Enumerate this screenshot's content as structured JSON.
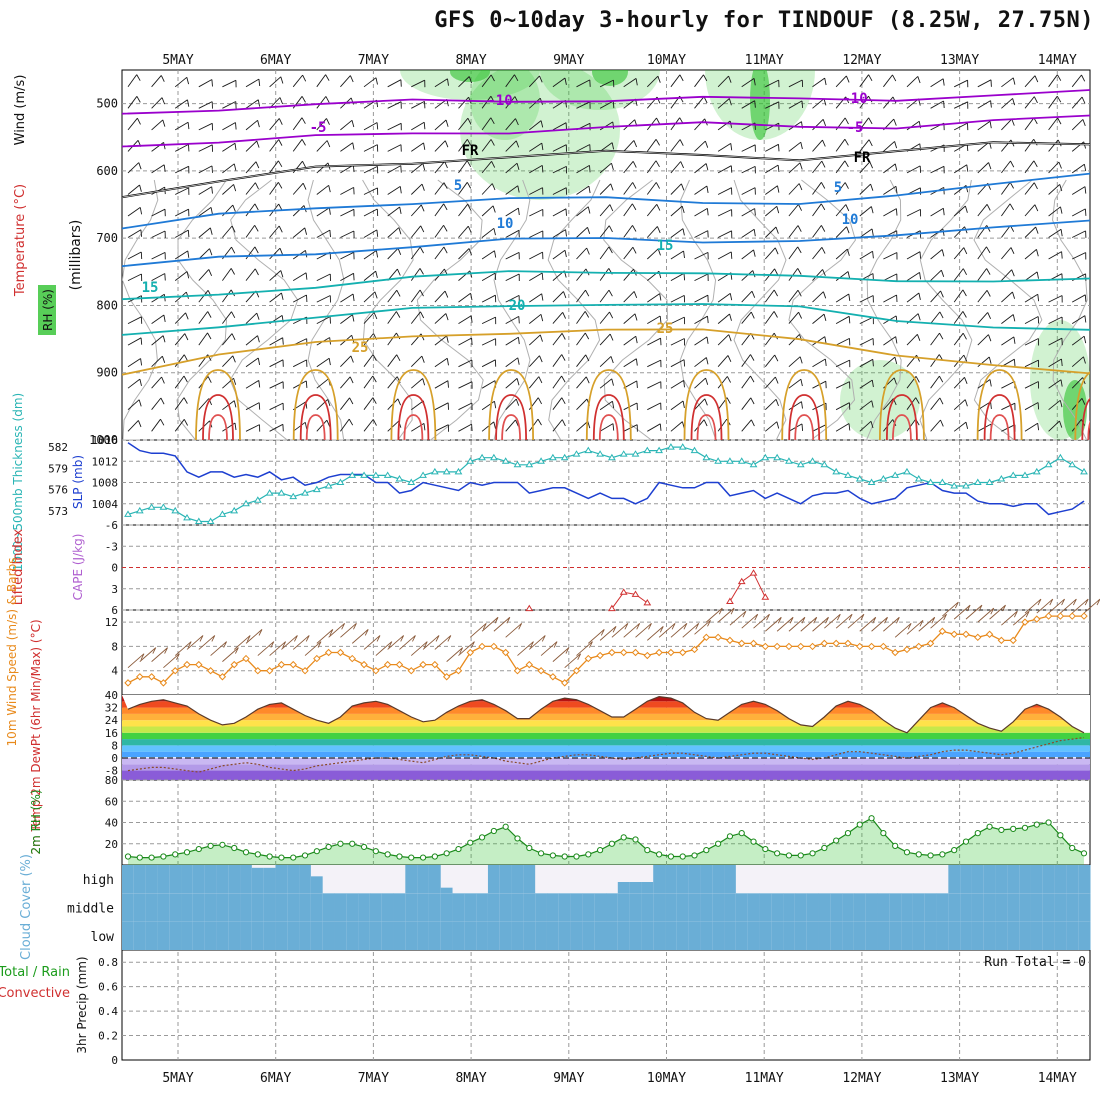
{
  "title": "GFS 0~10day 3-hourly for TINDOUF (8.25W, 27.75N)",
  "colors": {
    "grid": "#9a9a9a",
    "wind_barb": "#1a1a1a",
    "temp_cold": "#9a00cc",
    "temp_freeze": "#000000",
    "temp_cool": "#1f7ad6",
    "temp_mild": "#14b0b0",
    "temp_warm": "#d6a02a",
    "temp_hot": "#d03030",
    "rh_shade": "#2ec22e",
    "slp": "#1d3fd0",
    "thickness": "#2ab5b5",
    "lifted_index": "#d03030",
    "cape": "#b060d0",
    "wind10m": "#e88a1c",
    "barb10m": "#8a5a3a",
    "rh2m": "#1b8a1b",
    "cloud": "#6aaed6",
    "cloud_clear": "#f4f2f8",
    "cloud_mid_light": "#e6e6e6",
    "precip": "#1c9c1c"
  },
  "chart_data": [
    {
      "id": "upper-air",
      "type": "contour",
      "x_labels": [
        "5MAY",
        "6MAY",
        "7MAY",
        "8MAY",
        "9MAY",
        "10MAY",
        "11MAY",
        "12MAY",
        "13MAY",
        "14MAY"
      ],
      "y_ticks": [
        500,
        600,
        700,
        800,
        900,
        1000
      ],
      "ylim": [
        450,
        1000
      ],
      "ylabel_parts": [
        "Wind (m/s)",
        "Temperature (°C)",
        "RH (%)"
      ],
      "ylabel_units": "(millibars)",
      "contours": [
        {
          "level": "-10",
          "color_key": "temp_cold",
          "pressures": [
            515,
            506,
            502,
            498,
            495,
            493,
            493,
            495,
            492,
            486,
            484
          ]
        },
        {
          "level": "-5",
          "color_key": "temp_cold",
          "pressures": [
            560,
            556,
            551,
            545,
            540,
            535,
            532,
            533,
            533,
            527,
            521
          ]
        },
        {
          "level": "FR",
          "color_key": "temp_freeze",
          "pressures": [
            635,
            618,
            597,
            586,
            577,
            574,
            578,
            580,
            570,
            562,
            560
          ]
        },
        {
          "level": "5",
          "color_key": "temp_cool",
          "pressures": [
            685,
            668,
            655,
            645,
            642,
            643,
            645,
            646,
            640,
            622,
            600
          ]
        },
        {
          "level": "10",
          "color_key": "temp_cool",
          "pressures": [
            745,
            730,
            720,
            712,
            705,
            700,
            702,
            705,
            700,
            682,
            670
          ]
        },
        {
          "level": "15",
          "color_key": "temp_mild",
          "pressures": [
            795,
            782,
            770,
            760,
            752,
            748,
            750,
            760,
            765,
            760,
            760
          ]
        },
        {
          "level": "20",
          "color_key": "temp_mild",
          "pressures": [
            845,
            828,
            818,
            808,
            800,
            795,
            800,
            805,
            820,
            830,
            840
          ]
        },
        {
          "level": "25",
          "color_key": "temp_warm",
          "pressures": [
            900,
            870,
            858,
            848,
            838,
            835,
            840,
            850,
            870,
            890,
            905
          ]
        }
      ],
      "contour_labels": [
        "-10",
        "-10",
        "-5",
        "-5",
        "FR",
        "FR",
        "5",
        "5",
        "10",
        "10",
        "15",
        "15",
        "20",
        "25",
        "25"
      ]
    },
    {
      "id": "thickness-slp",
      "type": "line",
      "left_ticks": [
        "582",
        "579",
        "576",
        "573"
      ],
      "right_ticks": [
        "1016",
        "1012",
        "1008",
        "1004"
      ],
      "ylabel_left": "1000~500mb Thickness (dm)",
      "ylabel_right": "SLP (mb)",
      "series": [
        {
          "name": "SLP (mb)",
          "ylim": [
            1000,
            1016
          ],
          "values": [
            1015.5,
            1014,
            1013.5,
            1013.5,
            1013,
            1010,
            1009,
            1010,
            1010,
            1009,
            1009.5,
            1009,
            1010,
            1008.5,
            1009,
            1007.5,
            1008,
            1009,
            1009.5,
            1009.5,
            1009.5,
            1008,
            1008,
            1006,
            1006.5,
            1008,
            1007.5,
            1007,
            1006.5,
            1008,
            1007.5,
            1008,
            1008,
            1008,
            1006,
            1006.5,
            1007,
            1007,
            1006,
            1005,
            1006,
            1005,
            1005,
            1004,
            1005,
            1008,
            1007.5,
            1007,
            1007,
            1008,
            1008,
            1005.5,
            1006,
            1006.5,
            1005,
            1006,
            1005,
            1004,
            1005.5,
            1006,
            1006,
            1006.5,
            1005,
            1004,
            1004.5,
            1005,
            1007,
            1007.5,
            1008,
            1006.5,
            1006,
            1006,
            1004.5,
            1004,
            1004,
            1003.5,
            1004,
            1004,
            1002,
            1002.5,
            1003,
            1004.5
          ]
        },
        {
          "name": "1000~500mb Thickness (dm)",
          "ylim": [
            571,
            583
          ],
          "values": [
            572.5,
            573,
            573.5,
            573.5,
            573,
            572,
            571.5,
            571.5,
            572.5,
            573,
            574,
            574.5,
            575.5,
            575.5,
            575,
            575.5,
            576,
            576.5,
            577,
            578,
            578,
            578,
            578,
            577.5,
            577,
            578,
            578.5,
            578.5,
            578.5,
            580,
            580.5,
            580.5,
            580,
            579.5,
            579.5,
            580,
            580.5,
            580.5,
            581,
            581.5,
            581,
            580.5,
            581,
            581,
            581.5,
            581.5,
            582,
            582,
            581.5,
            580.5,
            580,
            580,
            580,
            579.5,
            580.5,
            580.5,
            580,
            579.5,
            580,
            579.5,
            578.5,
            578,
            577.5,
            577,
            577.5,
            578,
            578.5,
            577.5,
            577,
            577,
            576.5,
            576.5,
            577,
            577,
            577.5,
            578,
            578,
            578.5,
            579.5,
            580.5,
            579.5,
            578.5
          ]
        }
      ]
    },
    {
      "id": "stability",
      "type": "line",
      "y_ticks": [
        "-6",
        "-3",
        "0",
        "3",
        "6"
      ],
      "ylim": [
        6,
        -6
      ],
      "ylabel_left": "Lifted Index",
      "ylabel_right": "CAPE (J/kg)",
      "series": [
        {
          "name": "Lifted Index",
          "values": [
            null,
            null,
            null,
            null,
            null,
            null,
            null,
            null,
            null,
            null,
            null,
            null,
            null,
            null,
            null,
            null,
            null,
            null,
            null,
            null,
            null,
            null,
            null,
            null,
            null,
            null,
            null,
            null,
            null,
            null,
            null,
            null,
            null,
            null,
            5.8,
            null,
            null,
            null,
            null,
            null,
            null,
            5.8,
            3.5,
            3.8,
            5,
            null,
            null,
            null,
            null,
            null,
            null,
            4.8,
            2,
            0.8,
            4.2,
            null,
            null,
            null,
            null,
            null,
            null,
            null,
            null,
            null,
            null,
            null,
            null,
            null,
            null,
            null,
            null,
            null,
            null,
            null,
            null,
            null,
            null,
            null,
            null,
            null,
            null,
            null
          ]
        }
      ]
    },
    {
      "id": "wind-10m",
      "type": "line",
      "y_ticks": [
        "12",
        "8",
        "4"
      ],
      "ylim": [
        0,
        14
      ],
      "ylabel": "10m Wind Speed (m/s) & Barbs",
      "series": [
        {
          "name": "10m Wind Speed (m/s)",
          "values": [
            2,
            3,
            3,
            2,
            4,
            5,
            5,
            4,
            3,
            5,
            6,
            4,
            4,
            5,
            5,
            4,
            6,
            7,
            7,
            6,
            5,
            4,
            5,
            5,
            4,
            5,
            5,
            3,
            4,
            7,
            8,
            8,
            7,
            4,
            5,
            4,
            3,
            2,
            4,
            6,
            6.5,
            7,
            7,
            7,
            6.5,
            7,
            7,
            7,
            7.5,
            9.5,
            9.5,
            9,
            8.5,
            8.5,
            8,
            8,
            8,
            8,
            8,
            8.5,
            8.5,
            8.5,
            8,
            8,
            8,
            7,
            7.5,
            8,
            8.5,
            10.5,
            10,
            10,
            9.5,
            10,
            9,
            9,
            12,
            12.5,
            13,
            13,
            13,
            13
          ]
        }
      ]
    },
    {
      "id": "temp-2m",
      "type": "area",
      "y_ticks": [
        "40",
        "32",
        "24",
        "16",
        "8",
        "0",
        "-8"
      ],
      "ylim": [
        -14,
        40
      ],
      "ylabel": "2m Temp 2m DewPt (6hr Min/Max) (°C)",
      "series": [
        {
          "name": "2m Temp",
          "values": [
            31,
            34,
            36,
            37,
            35,
            33,
            28,
            24,
            21,
            22,
            26,
            31,
            34,
            35,
            31,
            27,
            24,
            22,
            26,
            33,
            35,
            36,
            34,
            30,
            26,
            23,
            24,
            29,
            33,
            36,
            37,
            34,
            30,
            25,
            25,
            31,
            36,
            38,
            37,
            34,
            30,
            26,
            26,
            31,
            36,
            39,
            38,
            35,
            29,
            25,
            24,
            29,
            34,
            36,
            34,
            30,
            25,
            21,
            20,
            26,
            33,
            36,
            34,
            30,
            24,
            19,
            16,
            24,
            32,
            35,
            32,
            27,
            22,
            19,
            17,
            23,
            31,
            34,
            31,
            26,
            20,
            16
          ]
        },
        {
          "name": "2m DewPt",
          "values": [
            -8,
            -7,
            -6,
            -6,
            -7,
            -8,
            -9,
            -7,
            -5,
            -4,
            -3,
            -4,
            -6,
            -7,
            -8,
            -7,
            -5,
            -4,
            -3,
            -2,
            -1,
            0,
            0,
            -1,
            -2,
            -3,
            -1,
            1,
            2,
            2,
            1,
            0,
            -2,
            -3,
            -4,
            -2,
            0,
            1,
            2,
            2,
            1,
            0,
            -1,
            0,
            1,
            2,
            3,
            3,
            2,
            1,
            0,
            1,
            2,
            3,
            3,
            2,
            1,
            0,
            -1,
            0,
            2,
            4,
            4,
            3,
            2,
            1,
            0,
            1,
            2,
            4,
            5,
            5,
            4,
            3,
            2,
            3,
            5,
            7,
            9,
            11,
            12,
            13
          ]
        }
      ]
    },
    {
      "id": "rh-2m",
      "type": "area",
      "y_ticks": [
        "80",
        "60",
        "40",
        "20"
      ],
      "ylim": [
        0,
        80
      ],
      "ylabel": "2m RH (%)",
      "series": [
        {
          "name": "2m RH",
          "values": [
            8,
            7,
            7,
            8,
            10,
            12,
            15,
            18,
            19,
            16,
            12,
            10,
            8,
            7,
            7,
            9,
            13,
            17,
            20,
            20,
            17,
            13,
            10,
            8,
            7,
            7,
            8,
            11,
            15,
            21,
            26,
            32,
            36,
            25,
            16,
            11,
            9,
            8,
            8,
            10,
            14,
            20,
            26,
            24,
            14,
            10,
            8,
            8,
            9,
            14,
            20,
            27,
            30,
            22,
            15,
            11,
            9,
            9,
            11,
            16,
            23,
            30,
            38,
            44,
            30,
            18,
            12,
            10,
            9,
            10,
            14,
            22,
            30,
            36,
            33,
            34,
            35,
            38,
            40,
            28,
            16,
            11
          ]
        }
      ]
    },
    {
      "id": "cloud-cover",
      "type": "heatmap",
      "rows": [
        "high",
        "middle",
        "low"
      ],
      "ylabel": "Cloud Cover (%)",
      "high_cloud": [
        100,
        100,
        100,
        100,
        100,
        100,
        100,
        100,
        100,
        100,
        100,
        90,
        90,
        100,
        100,
        100,
        60,
        0,
        0,
        0,
        0,
        0,
        0,
        0,
        100,
        100,
        100,
        20,
        0,
        0,
        0,
        100,
        100,
        100,
        100,
        0,
        0,
        0,
        0,
        0,
        0,
        0,
        40,
        40,
        40,
        100,
        100,
        100,
        100,
        100,
        100,
        100,
        0,
        0,
        0,
        0,
        0,
        0,
        0,
        0,
        0,
        0,
        0,
        0,
        0,
        0,
        0,
        0,
        0,
        0,
        100,
        100,
        100,
        100,
        100,
        100,
        100,
        100,
        100,
        100,
        100,
        100
      ],
      "mid_cloud": [
        100,
        100,
        100,
        100,
        100,
        100,
        100,
        100,
        100,
        100,
        100,
        100,
        100,
        100,
        100,
        100,
        100,
        100,
        100,
        100,
        100,
        100,
        100,
        100,
        100,
        100,
        100,
        100,
        100,
        100,
        100,
        100,
        100,
        100,
        100,
        100,
        100,
        100,
        100,
        100,
        100,
        100,
        100,
        100,
        100,
        100,
        100,
        100,
        100,
        100,
        100,
        100,
        100,
        100,
        100,
        100,
        100,
        100,
        100,
        100,
        100,
        100,
        100,
        100,
        100,
        100,
        100,
        100,
        100,
        100,
        100,
        100,
        100,
        100,
        100,
        100,
        100,
        100,
        100,
        100,
        100,
        100
      ],
      "low_cloud": [
        100,
        100,
        100,
        100,
        100,
        100,
        100,
        100,
        100,
        100,
        100,
        100,
        100,
        100,
        100,
        100,
        100,
        100,
        100,
        100,
        100,
        100,
        100,
        100,
        100,
        100,
        100,
        100,
        100,
        100,
        100,
        100,
        100,
        100,
        100,
        100,
        100,
        100,
        100,
        100,
        100,
        100,
        100,
        100,
        100,
        100,
        100,
        100,
        100,
        100,
        100,
        100,
        100,
        100,
        100,
        100,
        100,
        100,
        100,
        100,
        100,
        100,
        100,
        100,
        100,
        100,
        100,
        100,
        100,
        100,
        100,
        100,
        100,
        100,
        100,
        100,
        100,
        100,
        100,
        100,
        100,
        100
      ]
    },
    {
      "id": "precip-3hr",
      "type": "bar",
      "y_ticks": [
        "0.8",
        "0.6",
        "0.4",
        "0.2",
        "0"
      ],
      "ylim": [
        0,
        0.9
      ],
      "ylabel_total": "Total / Rain",
      "ylabel_convective": "Convective",
      "ylabel_units": "3hr Precip (mm)",
      "run_total": "Run Total = 0",
      "series": [
        {
          "name": "Total",
          "values": [
            0
          ]
        }
      ]
    }
  ]
}
